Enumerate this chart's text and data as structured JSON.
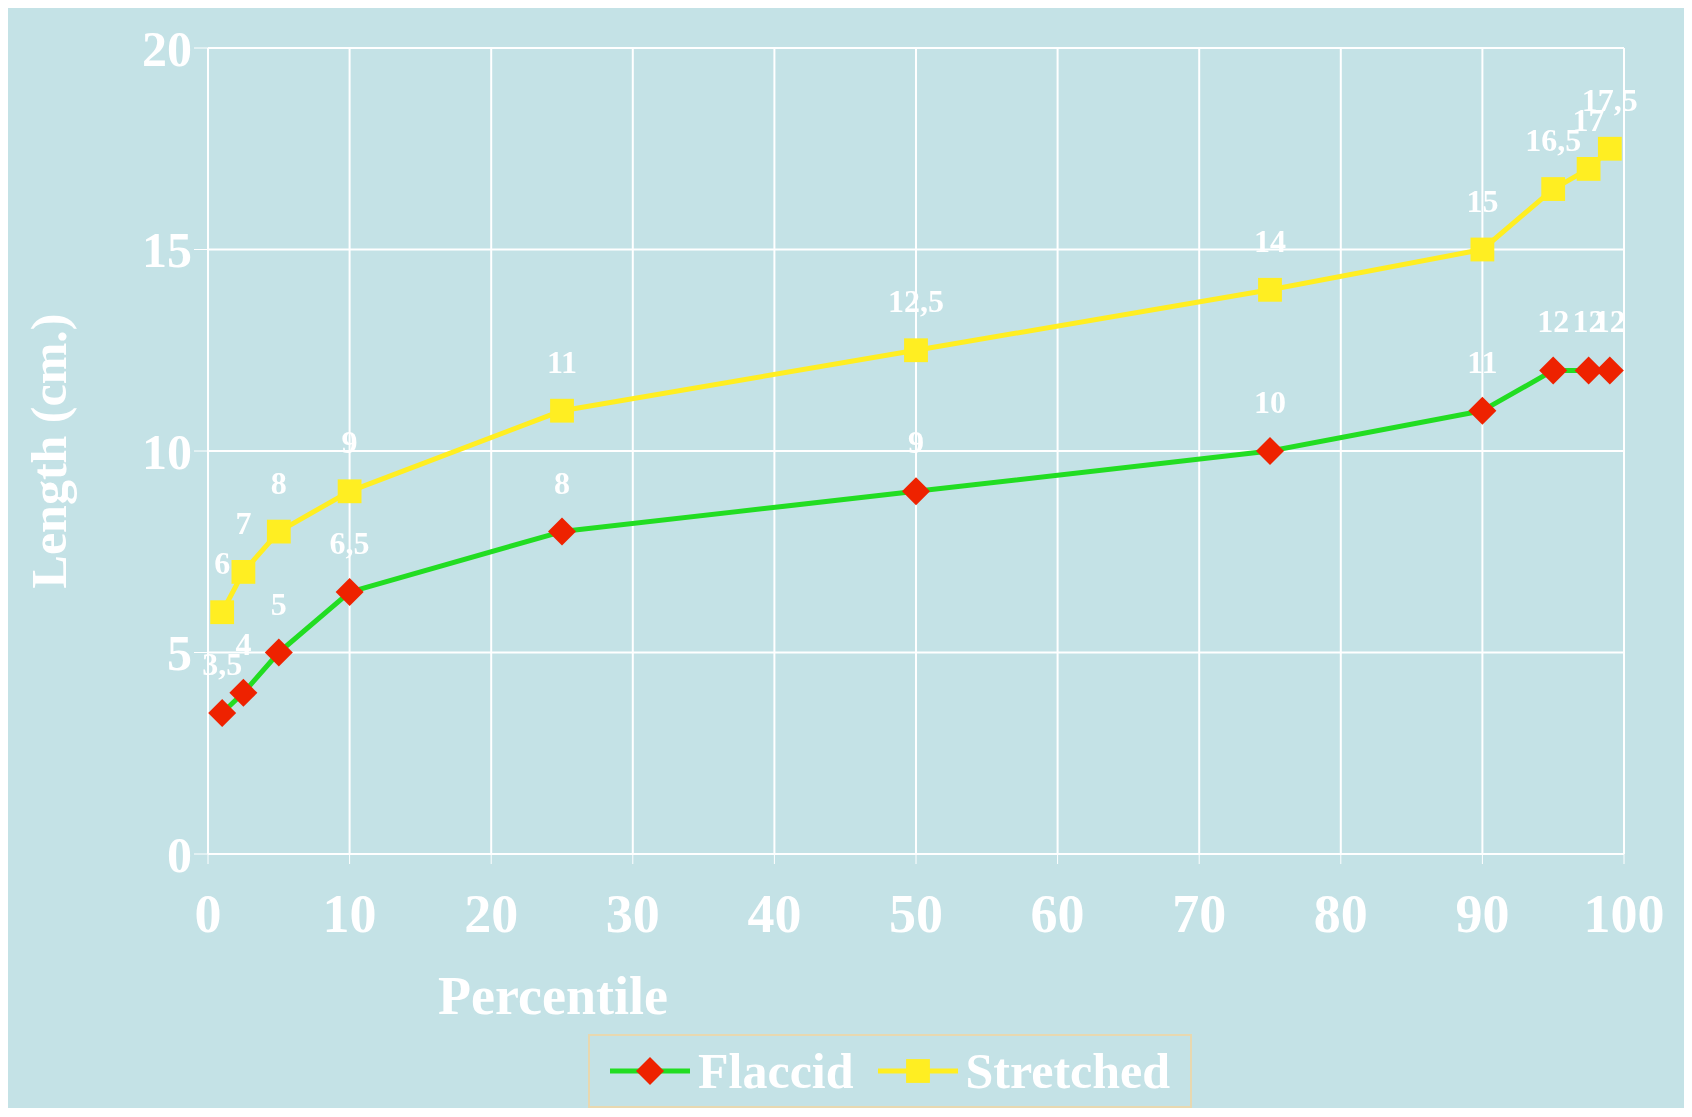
{
  "chart_data": {
    "type": "line",
    "xlabel": "Percentile",
    "ylabel": "Length (cm.)",
    "x": [
      1,
      2.5,
      5,
      10,
      25,
      50,
      75,
      90,
      95,
      97.5,
      99
    ],
    "series": [
      {
        "name": "Flaccid",
        "color": "#22dd22",
        "colors": [
          "#ee2200",
          "#ee2200",
          "#ee2200",
          "#ee2200",
          "#ee2200",
          "#ee2200",
          "#ee2200",
          "#ee2200",
          "#ee2200",
          "#ee2200",
          "#ee2200"
        ],
        "marker": "diamond",
        "values": [
          3.5,
          4,
          5,
          6.5,
          8,
          9,
          10,
          11,
          12,
          12,
          12
        ],
        "value_labels": [
          "3,5",
          "4",
          "5",
          "6,5",
          "8",
          "9",
          "10",
          "11",
          "12",
          "12",
          "12"
        ]
      },
      {
        "name": "Stretched",
        "color": "#ffee22",
        "colors": [
          "#ffee22",
          "#ffee22",
          "#ffee22",
          "#ffee22",
          "#ffee22",
          "#ffee22",
          "#ffee22",
          "#ffee22",
          "#ffee22",
          "#ffee22",
          "#ffee22"
        ],
        "marker": "square",
        "values": [
          6,
          7,
          8,
          9,
          11,
          12.5,
          14,
          15,
          16.5,
          17,
          17.5
        ],
        "value_labels": [
          "6",
          "7",
          "8",
          "9",
          "11",
          "12,5",
          "14",
          "15",
          "16,5",
          "17",
          "17,5"
        ]
      }
    ],
    "xlim": [
      0,
      100
    ],
    "xticks": [
      0,
      10,
      20,
      30,
      40,
      50,
      60,
      70,
      80,
      90,
      100
    ],
    "ylim": [
      0,
      20
    ],
    "yticks": [
      0,
      5,
      10,
      15,
      20
    ],
    "grid": true,
    "legend": "bottom",
    "line_style": "solid"
  }
}
